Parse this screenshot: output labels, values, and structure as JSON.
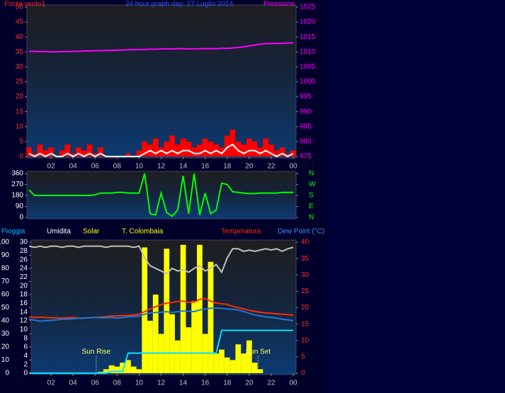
{
  "chart_data": [
    {
      "type": "line",
      "title_left": "Forza vento1",
      "title": "24 hour graph day: 27 Luglio 2014",
      "title_right": "Pressione",
      "x": [
        0,
        0.5,
        1,
        1.5,
        2,
        2.5,
        3,
        3.5,
        4,
        4.5,
        5,
        5.5,
        6,
        6.5,
        7,
        7.5,
        8,
        8.5,
        9,
        9.5,
        10,
        10.5,
        11,
        11.5,
        12,
        12.5,
        13,
        13.5,
        14,
        14.5,
        15,
        15.5,
        16,
        16.5,
        17,
        17.5,
        18,
        18.5,
        19,
        19.5,
        20,
        20.5,
        21,
        21.5,
        22,
        22.5,
        23,
        23.5,
        24
      ],
      "xlim": [
        0,
        24
      ],
      "xticks": [
        {
          "value": 2,
          "label": "02"
        },
        {
          "value": 4,
          "label": "04"
        },
        {
          "value": 6,
          "label": "06"
        },
        {
          "value": 8,
          "label": "08"
        },
        10,
        12,
        14,
        16,
        18,
        20,
        22,
        {
          "value": 24,
          "label": "00"
        }
      ],
      "ylim": [
        0,
        50
      ],
      "yticks": [
        0,
        5,
        10,
        15,
        20,
        25,
        30,
        35,
        40,
        45,
        50
      ],
      "ytick_color": "#ff3030",
      "y2lim": [
        975,
        1025
      ],
      "y2ticks": [
        975,
        980,
        985,
        990,
        995,
        1000,
        1005,
        1010,
        1015,
        1020,
        1025
      ],
      "y2tick_color": "#ff00ff",
      "series": [
        {
          "name": "Forza vento1",
          "type": "bar",
          "color": "#ff0000",
          "values": [
            3,
            1,
            4,
            2,
            3,
            0,
            2,
            4,
            1,
            3,
            2,
            4,
            1,
            3,
            0,
            0,
            0,
            0,
            1,
            0,
            2,
            5,
            4,
            6,
            3,
            5,
            7,
            4,
            6,
            5,
            3,
            4,
            6,
            5,
            4,
            3,
            7,
            9,
            5,
            4,
            6,
            5,
            3,
            6,
            4,
            2,
            3,
            1,
            2
          ]
        },
        {
          "type": "line",
          "color": "#ffffff",
          "values": [
            1,
            0,
            1,
            0,
            1,
            0,
            0,
            1,
            0,
            1,
            0,
            1,
            0,
            1,
            0,
            0,
            0,
            0,
            0,
            0,
            0,
            1,
            2,
            1,
            2,
            1,
            2,
            1,
            2,
            2,
            1,
            1,
            2,
            1,
            2,
            1,
            3,
            4,
            2,
            1,
            2,
            2,
            1,
            2,
            1,
            0,
            1,
            0,
            1
          ]
        },
        {
          "name": "Pressione",
          "type": "line",
          "color": "#ff00ff",
          "axis": "y2",
          "values": [
            1010.2,
            1010.2,
            1010.1,
            1010.1,
            1010.0,
            1010.0,
            1010.1,
            1010.1,
            1010.2,
            1010.2,
            1010.3,
            1010.3,
            1010.4,
            1010.4,
            1010.5,
            1010.5,
            1010.6,
            1010.6,
            1010.7,
            1010.7,
            1010.8,
            1010.8,
            1010.9,
            1010.9,
            1011.0,
            1011.0,
            1011.0,
            1011.1,
            1011.1,
            1011.0,
            1011.0,
            1011.1,
            1011.1,
            1011.1,
            1011.1,
            1011.2,
            1011.2,
            1011.3,
            1011.5,
            1011.7,
            1012.0,
            1012.3,
            1012.6,
            1012.8,
            1012.8,
            1012.9,
            1012.9,
            1013.0,
            1013.0
          ]
        }
      ]
    },
    {
      "type": "line",
      "x": [
        0,
        0.5,
        1,
        1.5,
        2,
        2.5,
        3,
        3.5,
        4,
        4.5,
        5,
        5.5,
        6,
        6.5,
        7,
        7.5,
        8,
        8.5,
        9,
        9.5,
        10,
        10.5,
        11,
        11.5,
        12,
        12.5,
        13,
        13.5,
        14,
        14.5,
        15,
        15.5,
        16,
        16.5,
        17,
        17.5,
        18,
        18.5,
        19,
        19.5,
        20,
        20.5,
        21,
        21.5,
        22,
        22.5,
        23,
        23.5,
        24
      ],
      "xlim": [
        0,
        24
      ],
      "ylim": [
        0,
        360
      ],
      "yticks": [
        0,
        90,
        180,
        270,
        360
      ],
      "ytick_color": "#ffffff",
      "y2lim": [
        0,
        360
      ],
      "y2ticks": [
        {
          "value": 360,
          "label": "N"
        },
        {
          "value": 270,
          "label": "W"
        },
        {
          "value": 180,
          "label": "S"
        },
        {
          "value": 90,
          "label": "E"
        },
        {
          "value": 0,
          "label": "N"
        }
      ],
      "y2tick_color": "#00ff00",
      "series": [
        {
          "type": "line",
          "color": "#00ff00",
          "values": [
            225,
            180,
            180,
            180,
            180,
            180,
            180,
            180,
            180,
            180,
            180,
            180,
            185,
            200,
            200,
            200,
            205,
            205,
            200,
            200,
            200,
            360,
            30,
            20,
            200,
            40,
            10,
            60,
            340,
            30,
            360,
            20,
            200,
            30,
            60,
            280,
            270,
            210,
            205,
            200,
            195,
            195,
            200,
            200,
            200,
            200,
            205,
            205,
            205
          ]
        }
      ]
    },
    {
      "type": "line",
      "other_labels": [
        "T. Colombaia"
      ],
      "x": [
        0,
        0.5,
        1,
        1.5,
        2,
        2.5,
        3,
        3.5,
        4,
        4.5,
        5,
        5.5,
        6,
        6.5,
        7,
        7.5,
        8,
        8.5,
        9,
        9.5,
        10,
        10.5,
        11,
        11.5,
        12,
        12.5,
        13,
        13.5,
        14,
        14.5,
        15,
        15.5,
        16,
        16.5,
        17,
        17.5,
        18,
        18.5,
        19,
        19.5,
        20,
        20.5,
        21,
        21.5,
        22,
        22.5,
        23,
        23.5,
        24
      ],
      "xlim": [
        0,
        24
      ],
      "xticks": [
        {
          "value": 2,
          "label": "02"
        },
        {
          "value": 4,
          "label": "04"
        },
        {
          "value": 6,
          "label": "06"
        },
        {
          "value": 8,
          "label": "08"
        },
        10,
        12,
        14,
        16,
        18,
        20,
        22,
        {
          "value": 24,
          "label": "00"
        }
      ],
      "ylim": [
        0,
        100
      ],
      "yticks": [
        0,
        10,
        20,
        30,
        40,
        50,
        60,
        70,
        80,
        90,
        100
      ],
      "ytick_color": "#ffffff",
      "y2lim": [
        0,
        30
      ],
      "y2ticks": [
        0,
        2,
        4,
        6,
        8,
        10,
        12,
        14,
        16,
        18,
        20,
        22,
        24,
        26,
        28,
        30
      ],
      "y2tick_color": "#ffffff",
      "y3lim": [
        0,
        40
      ],
      "y3ticks": [
        0,
        5,
        10,
        15,
        20,
        25,
        30,
        35,
        40
      ],
      "y3tick_color": "#ff3030",
      "annotations": [
        {
          "text": "Sun Rise",
          "x": 6.1
        },
        {
          "text": "Sun Set",
          "x": 20.8
        }
      ],
      "series": [
        {
          "name": "Pioggia",
          "type": "line",
          "color": "#00e0ff",
          "label_color": "#00b8ff",
          "axis": "y2",
          "values": [
            0,
            0,
            0,
            0,
            0,
            0,
            0,
            0,
            0,
            0,
            0,
            0,
            0,
            0,
            0,
            0.4,
            0.4,
            0.4,
            4.6,
            4.6,
            4.6,
            4.6,
            4.6,
            4.6,
            4.6,
            4.6,
            4.6,
            4.6,
            4.6,
            4.6,
            4.6,
            4.6,
            4.6,
            4.6,
            4.6,
            9.8,
            9.8,
            9.8,
            9.8,
            9.8,
            9.8,
            9.8,
            9.8,
            9.8,
            9.8,
            9.8,
            9.8,
            9.8,
            9.8
          ]
        },
        {
          "name": "Umidita",
          "type": "line",
          "color": "#c0c0c0",
          "label_color": "#ffffff",
          "values": [
            97,
            96,
            97,
            96,
            97,
            97,
            96,
            97,
            97,
            96,
            97,
            97,
            97,
            97,
            96,
            97,
            97,
            97,
            97,
            96,
            97,
            88,
            82,
            80,
            78,
            76,
            80,
            78,
            79,
            77,
            80,
            82,
            78,
            80,
            83,
            77,
            88,
            95,
            95,
            93,
            94,
            93,
            94,
            95,
            94,
            95,
            93,
            95,
            96
          ]
        },
        {
          "name": "Solar",
          "type": "bar",
          "color": "#ffff00",
          "label_color": "#ffff00",
          "values": [
            0,
            0,
            0,
            0,
            0,
            0,
            0,
            0,
            0,
            0,
            0,
            0,
            0,
            1,
            3,
            6,
            5,
            8,
            10,
            5,
            3,
            96,
            40,
            60,
            30,
            95,
            45,
            25,
            98,
            35,
            55,
            98,
            30,
            85,
            15,
            18,
            12,
            10,
            22,
            15,
            25,
            8,
            3,
            0,
            0,
            0,
            0,
            0,
            0
          ]
        },
        {
          "name": "Temperatura",
          "type": "line",
          "color": "#ff2a00",
          "label_color": "#ff2a00",
          "axis": "y3",
          "values": [
            17.2,
            17.0,
            17.1,
            17.0,
            16.9,
            16.9,
            16.8,
            16.9,
            17.0,
            16.8,
            16.8,
            16.9,
            17.0,
            17.1,
            17.3,
            17.4,
            17.5,
            17.6,
            17.6,
            17.8,
            18.0,
            18.8,
            19.6,
            20.3,
            20.9,
            21.4,
            21.6,
            21.9,
            22.0,
            21.6,
            21.7,
            22.5,
            22.8,
            22.0,
            21.4,
            21.2,
            21.0,
            20.4,
            20.0,
            19.6,
            19.2,
            18.9,
            18.6,
            18.4,
            18.3,
            18.1,
            18.0,
            17.9,
            17.7
          ]
        },
        {
          "name": "Dew Point (°C)",
          "type": "line",
          "color": "#1e78d2",
          "label_color": "#3a8cff",
          "axis": "y3",
          "values": [
            16.5,
            16.2,
            15.9,
            16.0,
            16.1,
            16.3,
            16.5,
            16.5,
            16.6,
            16.8,
            16.8,
            16.9,
            17.0,
            16.9,
            16.9,
            17.0,
            16.8,
            17.0,
            17.2,
            17.3,
            17.4,
            18.0,
            18.4,
            18.5,
            18.6,
            18.8,
            18.5,
            18.8,
            19.0,
            18.9,
            18.8,
            19.3,
            19.6,
            19.8,
            19.9,
            19.8,
            19.6,
            19.5,
            19.3,
            18.8,
            18.3,
            17.8,
            17.5,
            17.2,
            17.0,
            16.8,
            16.5,
            16.3,
            16.0
          ]
        }
      ]
    }
  ]
}
